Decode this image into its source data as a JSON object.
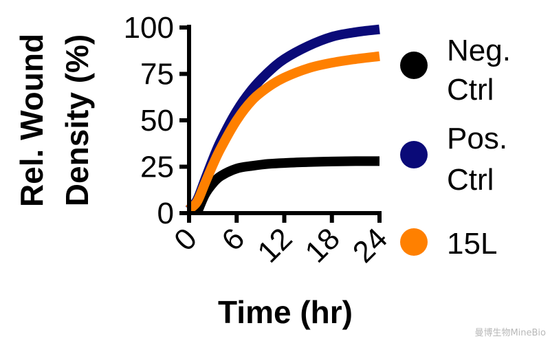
{
  "chart_data": {
    "type": "line",
    "title": "",
    "xlabel": "Time (hr)",
    "ylabel_lines": [
      "Rel. Wound",
      "Density (%)"
    ],
    "xlim": [
      0,
      24
    ],
    "ylim": [
      0,
      100
    ],
    "xticks": [
      0,
      6,
      12,
      18,
      24
    ],
    "yticks": [
      0,
      25,
      50,
      75,
      100
    ],
    "grid": false,
    "legend_position": "right",
    "series": [
      {
        "name_lines": [
          "Neg.",
          "Ctrl"
        ],
        "color": "#000000",
        "x": [
          1,
          2,
          3,
          4,
          6,
          8,
          10,
          12,
          15,
          18,
          21,
          24
        ],
        "y": [
          0,
          10,
          16,
          20,
          24,
          25.5,
          26.5,
          27,
          27.5,
          27.8,
          28,
          28
        ]
      },
      {
        "name_lines": [
          "Pos.",
          "Ctrl"
        ],
        "color": "#0a0a78",
        "x": [
          0,
          1,
          2,
          3,
          4,
          6,
          8,
          10,
          12,
          15,
          18,
          21,
          24
        ],
        "y": [
          2,
          7,
          18,
          29,
          39,
          55,
          67,
          76,
          83,
          90,
          95,
          97.5,
          99
        ]
      },
      {
        "name_lines": [
          "15L"
        ],
        "color": "#ff8000",
        "x": [
          0,
          1,
          2,
          3,
          4,
          6,
          8,
          10,
          12,
          15,
          18,
          21,
          24
        ],
        "y": [
          2,
          6,
          16,
          26,
          35,
          50,
          61,
          68,
          73,
          78,
          81,
          83,
          84.5
        ]
      }
    ]
  },
  "watermark": "曼博生物MineBio"
}
